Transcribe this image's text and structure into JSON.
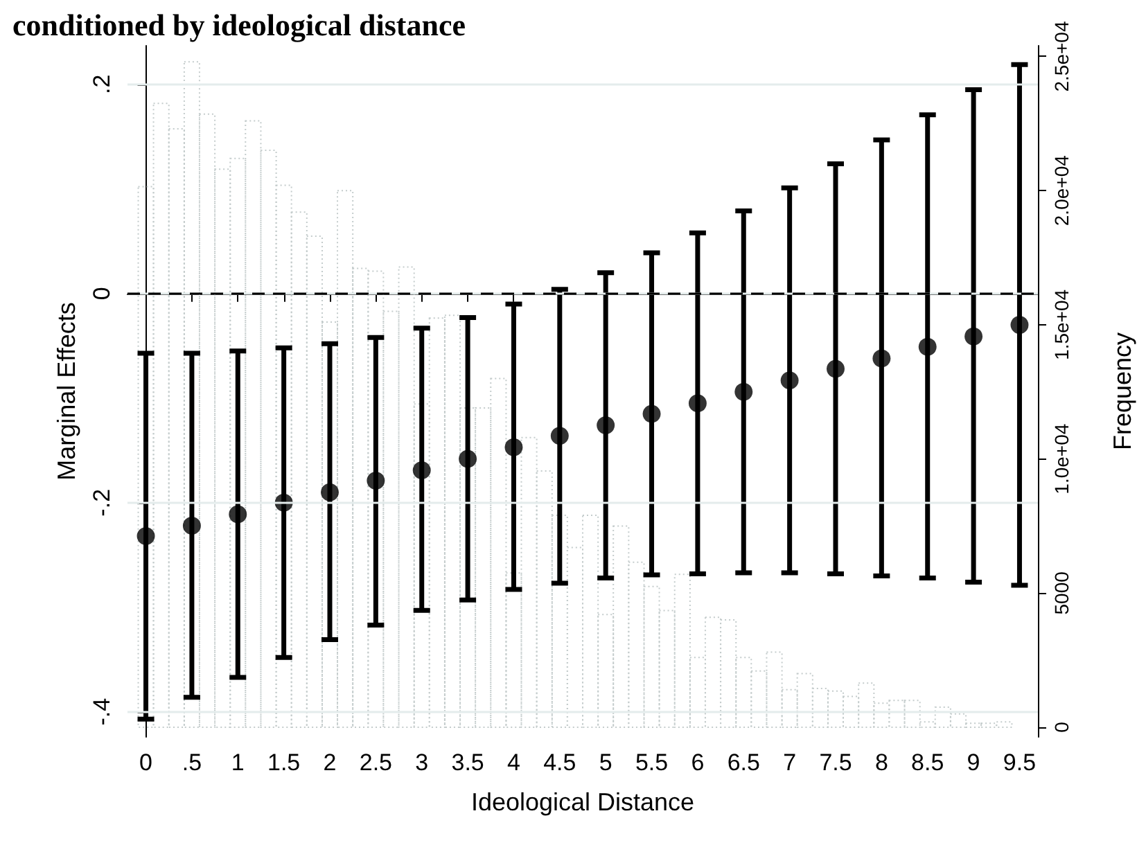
{
  "chart_data": {
    "type": "scatter",
    "title": "conditioned by ideological distance",
    "xlabel": "Ideological Distance",
    "ylabel": "Marginal Effects",
    "y2label": "Frequency",
    "xlim": [
      -0.2,
      9.7
    ],
    "xticks": [
      0,
      {
        "value": 0.5,
        "label": ".5"
      },
      1,
      1.5,
      2,
      2.5,
      3,
      3.5,
      4,
      4.5,
      5,
      5.5,
      6,
      6.5,
      7,
      7.5,
      8,
      8.5,
      9,
      9.5
    ],
    "ylim": [
      -0.424,
      0.237
    ],
    "yticks": [
      {
        "value": -0.4,
        "label": "-.4"
      },
      {
        "value": -0.2,
        "label": "-.2"
      },
      0,
      {
        "value": 0.2,
        "label": ".2"
      }
    ],
    "y2lim": [
      -360,
      25400
    ],
    "y2ticks": [
      0,
      5000,
      {
        "value": 10000,
        "label": "1.0e+04"
      },
      {
        "value": 15000,
        "label": "1.5e+04"
      },
      {
        "value": 20000,
        "label": "2.0e+04"
      },
      {
        "value": 25000,
        "label": "2.5e+04"
      }
    ],
    "grid": "y",
    "marker": "circle",
    "ref_lines": [
      {
        "axis": "y",
        "value": 0,
        "color": "#000000",
        "line_style": "dashed"
      }
    ],
    "series": [
      {
        "type": "histogram",
        "axis": "y2",
        "color": "#c4cccc",
        "bins": [
          -0.083,
          0.083,
          0.25,
          0.417,
          0.583,
          0.75,
          0.917,
          1.083,
          1.25,
          1.417,
          1.583,
          1.75,
          1.917,
          2.083,
          2.25,
          2.417,
          2.583,
          2.75,
          2.917,
          3.083,
          3.25,
          3.417,
          3.583,
          3.75,
          3.917,
          4.083,
          4.25,
          4.417,
          4.583,
          4.75,
          4.917,
          5.083,
          5.25,
          5.417,
          5.583,
          5.75,
          5.917,
          6.083,
          6.25,
          6.417,
          6.583,
          6.75,
          6.917,
          7.083,
          7.25,
          7.417,
          7.583,
          7.75,
          7.917,
          8.083,
          8.25,
          8.417,
          8.583,
          8.75,
          8.917,
          9.083,
          9.25,
          9.417
        ],
        "values": [
          20150,
          23250,
          22300,
          24800,
          22850,
          20800,
          21200,
          22600,
          21500,
          20200,
          19200,
          18300,
          15100,
          20000,
          17100,
          17000,
          15500,
          17150,
          12050,
          15250,
          15350,
          11900,
          11900,
          13000,
          5750,
          10800,
          9550,
          7900,
          6700,
          7900,
          4200,
          7500,
          6150,
          5250,
          4350,
          5700,
          2600,
          4100,
          4000,
          2600,
          2100,
          2800,
          1400,
          2000,
          1450,
          1350,
          1150,
          1650,
          900,
          1000,
          1000,
          200,
          750,
          500,
          150,
          150,
          200
        ]
      },
      {
        "color": "#000000",
        "x": [
          0,
          0.5,
          1,
          1.5,
          2,
          2.5,
          3,
          3.5,
          4,
          4.5,
          5,
          5.5,
          6,
          6.5,
          7,
          7.5,
          8,
          8.5,
          9,
          9.5
        ],
        "values": [
          -0.232,
          -0.222,
          -0.211,
          -0.2,
          -0.19,
          -0.179,
          -0.169,
          -0.158,
          -0.147,
          -0.136,
          -0.126,
          -0.115,
          -0.105,
          -0.094,
          -0.083,
          -0.072,
          -0.062,
          -0.051,
          -0.041,
          -0.03
        ],
        "errors": [
          [
            -0.407,
            -0.057
          ],
          [
            -0.386,
            -0.057
          ],
          [
            -0.367,
            -0.055
          ],
          [
            -0.348,
            -0.052
          ],
          [
            -0.331,
            -0.048
          ],
          [
            -0.317,
            -0.042
          ],
          [
            -0.303,
            -0.033
          ],
          [
            -0.293,
            -0.023
          ],
          [
            -0.283,
            -0.01
          ],
          [
            -0.277,
            0.004
          ],
          [
            -0.272,
            0.02
          ],
          [
            -0.269,
            0.039
          ],
          [
            -0.268,
            0.058
          ],
          [
            -0.267,
            0.079
          ],
          [
            -0.267,
            0.101
          ],
          [
            -0.268,
            0.124
          ],
          [
            -0.27,
            0.147
          ],
          [
            -0.272,
            0.171
          ],
          [
            -0.276,
            0.195
          ],
          [
            -0.279,
            0.219
          ]
        ]
      }
    ]
  }
}
